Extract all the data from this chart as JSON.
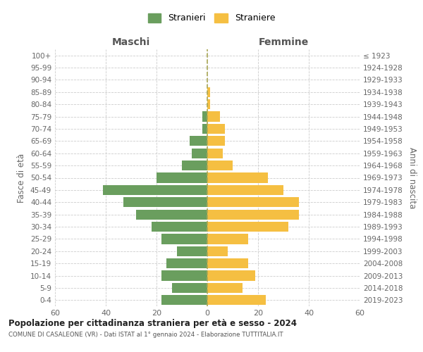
{
  "age_groups": [
    "0-4",
    "5-9",
    "10-14",
    "15-19",
    "20-24",
    "25-29",
    "30-34",
    "35-39",
    "40-44",
    "45-49",
    "50-54",
    "55-59",
    "60-64",
    "65-69",
    "70-74",
    "75-79",
    "80-84",
    "85-89",
    "90-94",
    "95-99",
    "100+"
  ],
  "birth_years": [
    "2019-2023",
    "2014-2018",
    "2009-2013",
    "2004-2008",
    "1999-2003",
    "1994-1998",
    "1989-1993",
    "1984-1988",
    "1979-1983",
    "1974-1978",
    "1969-1973",
    "1964-1968",
    "1959-1963",
    "1954-1958",
    "1949-1953",
    "1944-1948",
    "1939-1943",
    "1934-1938",
    "1929-1933",
    "1924-1928",
    "≤ 1923"
  ],
  "maschi": [
    18,
    14,
    18,
    16,
    12,
    18,
    22,
    28,
    33,
    41,
    20,
    10,
    6,
    7,
    2,
    2,
    0,
    0,
    0,
    0,
    0
  ],
  "femmine": [
    23,
    14,
    19,
    16,
    8,
    16,
    32,
    36,
    36,
    30,
    24,
    10,
    6,
    7,
    7,
    5,
    1,
    1,
    0,
    0,
    0
  ],
  "male_color": "#6a9e5e",
  "female_color": "#f5bf42",
  "bar_height": 0.82,
  "xlim": 60,
  "title": "Popolazione per cittadinanza straniera per età e sesso - 2024",
  "subtitle": "COMUNE DI CASALEONE (VR) - Dati ISTAT al 1° gennaio 2024 - Elaborazione TUTTITALIA.IT",
  "xlabel_left": "Maschi",
  "xlabel_right": "Femmine",
  "ylabel_left": "Fasce di età",
  "ylabel_right": "Anni di nascita",
  "legend_maschi": "Stranieri",
  "legend_femmine": "Straniere",
  "background_color": "#ffffff",
  "grid_color": "#cccccc"
}
